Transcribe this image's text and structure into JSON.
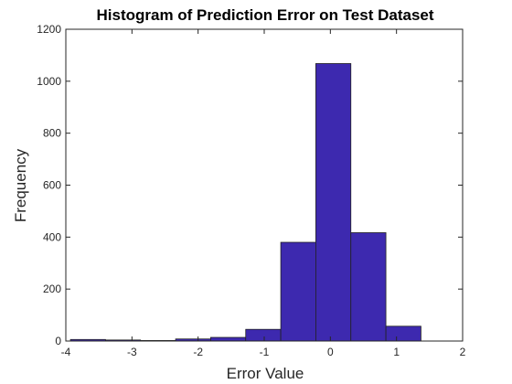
{
  "chart_data": {
    "type": "bar",
    "title": "Histogram of Prediction Error on Test Dataset",
    "xlabel": "Error Value",
    "ylabel": "Frequency",
    "xlim": [
      -4,
      2
    ],
    "ylim": [
      0,
      1200
    ],
    "xticks": [
      -4,
      -3,
      -2,
      -1,
      0,
      1,
      2
    ],
    "yticks": [
      0,
      200,
      400,
      600,
      800,
      1000,
      1200
    ],
    "bin_edges": [
      -3.93,
      -3.4,
      -2.87,
      -2.34,
      -1.81,
      -1.28,
      -0.75,
      -0.22,
      0.31,
      0.84,
      1.37
    ],
    "values": [
      6,
      4,
      2,
      8,
      14,
      45,
      380,
      1068,
      417,
      57
    ],
    "bar_color": "#3D29AF",
    "edge_color": "#222222",
    "grid": false,
    "box": true
  }
}
